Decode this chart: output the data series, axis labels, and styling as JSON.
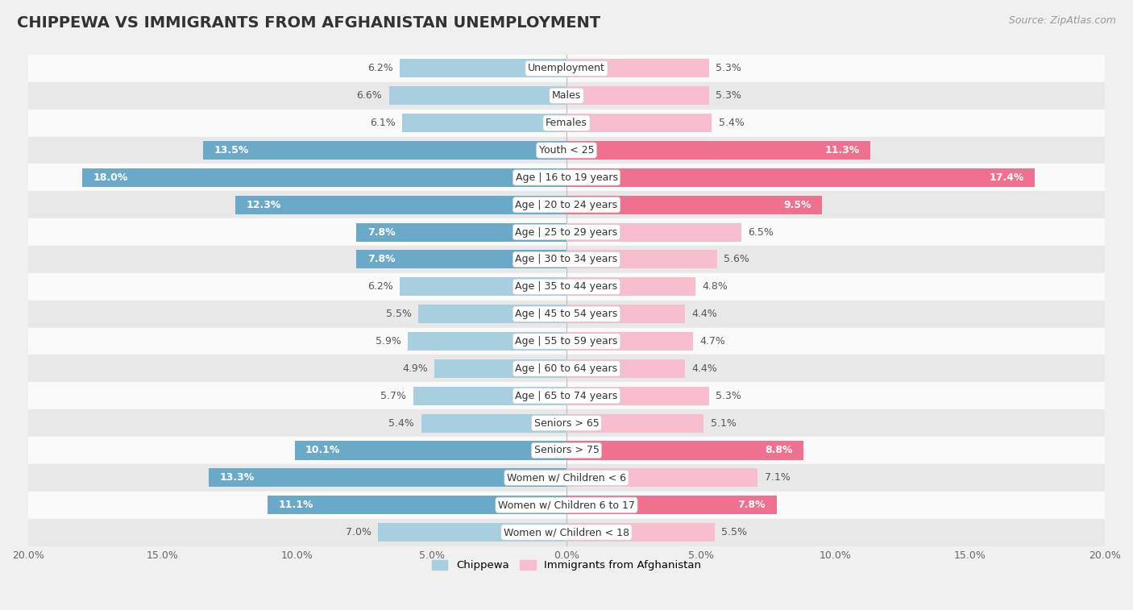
{
  "title": "CHIPPEWA VS IMMIGRANTS FROM AFGHANISTAN UNEMPLOYMENT",
  "source": "Source: ZipAtlas.com",
  "categories": [
    "Unemployment",
    "Males",
    "Females",
    "Youth < 25",
    "Age | 16 to 19 years",
    "Age | 20 to 24 years",
    "Age | 25 to 29 years",
    "Age | 30 to 34 years",
    "Age | 35 to 44 years",
    "Age | 45 to 54 years",
    "Age | 55 to 59 years",
    "Age | 60 to 64 years",
    "Age | 65 to 74 years",
    "Seniors > 65",
    "Seniors > 75",
    "Women w/ Children < 6",
    "Women w/ Children 6 to 17",
    "Women w/ Children < 18"
  ],
  "chippewa": [
    6.2,
    6.6,
    6.1,
    13.5,
    18.0,
    12.3,
    7.8,
    7.8,
    6.2,
    5.5,
    5.9,
    4.9,
    5.7,
    5.4,
    10.1,
    13.3,
    11.1,
    7.0
  ],
  "afghanistan": [
    5.3,
    5.3,
    5.4,
    11.3,
    17.4,
    9.5,
    6.5,
    5.6,
    4.8,
    4.4,
    4.7,
    4.4,
    5.3,
    5.1,
    8.8,
    7.1,
    7.8,
    5.5
  ],
  "chippewa_color_normal": "#a8cfe0",
  "chippewa_color_bold": "#6aaac8",
  "afghanistan_color_normal": "#f7bece",
  "afghanistan_color_bold": "#f07090",
  "x_max": 20.0,
  "background_color": "#f0f0f0",
  "row_bg_light": "#fafafa",
  "row_bg_dark": "#e8e8e8",
  "title_fontsize": 14,
  "source_fontsize": 9,
  "label_fontsize": 9,
  "cat_fontsize": 9
}
